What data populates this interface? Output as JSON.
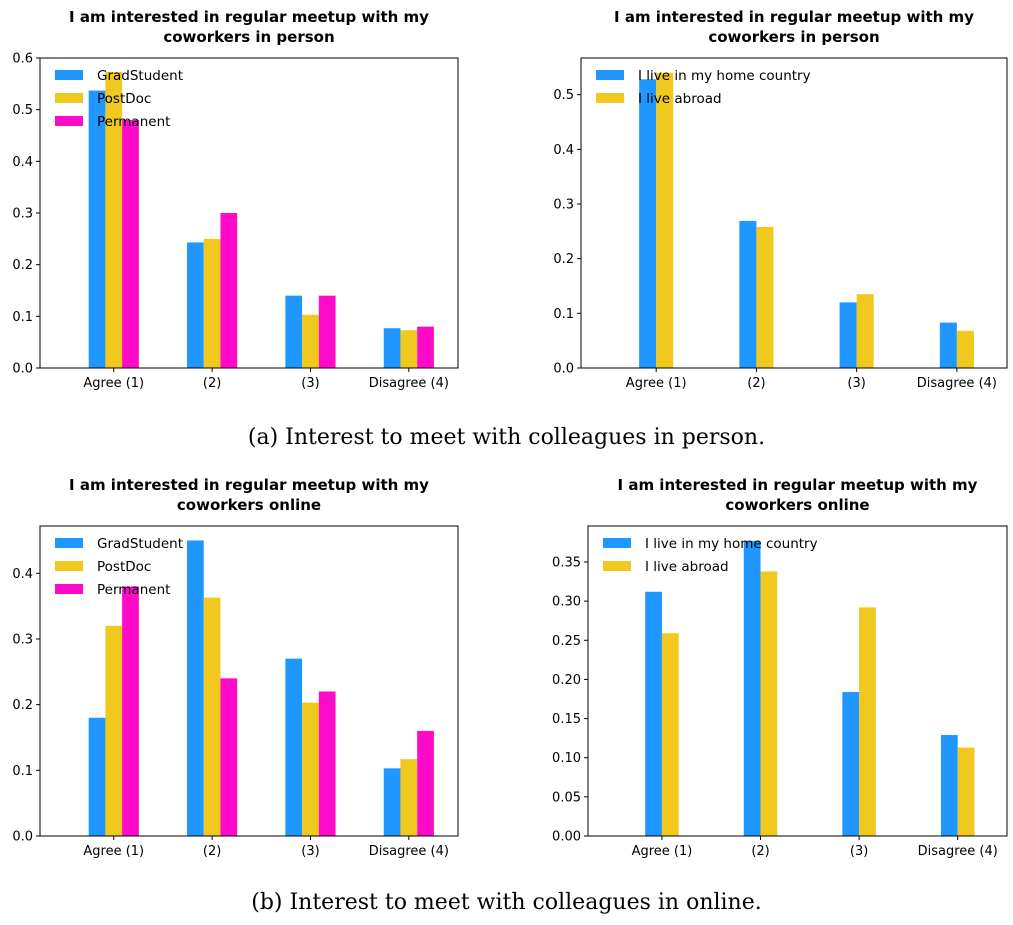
{
  "captions": {
    "a": "(a) Interest to meet with colleagues in person.",
    "b": "(b) Interest to meet with colleagues in online."
  },
  "colors": {
    "GradStudent": "#1f97ff",
    "PostDoc": "#f0c81e",
    "Permanent": "#ff0ac8",
    "I live in my home country": "#1f97ff",
    "I live abroad": "#f0c81e"
  },
  "chart_data": [
    {
      "type": "bar",
      "title": "I am interested in regular meetup with my coworkers in person",
      "categories": [
        "Agree (1)",
        "(2)",
        "(3)",
        "Disagree (4)"
      ],
      "series": [
        {
          "name": "GradStudent",
          "values": [
            0.537,
            0.243,
            0.14,
            0.077
          ]
        },
        {
          "name": "PostDoc",
          "values": [
            0.573,
            0.25,
            0.103,
            0.073
          ]
        },
        {
          "name": "Permanent",
          "values": [
            0.48,
            0.3,
            0.14,
            0.08
          ]
        }
      ],
      "ylim": [
        0,
        0.6
      ],
      "yticks": [
        "0.0",
        "0.1",
        "0.2",
        "0.3",
        "0.4",
        "0.5",
        "0.6"
      ],
      "legend_loc": "top-left",
      "grid": false
    },
    {
      "type": "bar",
      "title": "I am interested in regular meetup with my coworkers in person",
      "categories": [
        "Agree (1)",
        "(2)",
        "(3)",
        "Disagree (4)"
      ],
      "series": [
        {
          "name": "I live in my home country",
          "values": [
            0.528,
            0.269,
            0.12,
            0.083
          ]
        },
        {
          "name": "I live abroad",
          "values": [
            0.54,
            0.258,
            0.135,
            0.068
          ]
        }
      ],
      "ylim": [
        0,
        0.567
      ],
      "yticks": [
        "0.0",
        "0.1",
        "0.2",
        "0.3",
        "0.4",
        "0.5"
      ],
      "legend_loc": "top-left",
      "grid": false
    },
    {
      "type": "bar",
      "title": "I am interested in regular meetup with my coworkers online",
      "categories": [
        "Agree (1)",
        "(2)",
        "(3)",
        "Disagree (4)"
      ],
      "series": [
        {
          "name": "GradStudent",
          "values": [
            0.18,
            0.45,
            0.27,
            0.103
          ]
        },
        {
          "name": "PostDoc",
          "values": [
            0.32,
            0.363,
            0.203,
            0.117
          ]
        },
        {
          "name": "Permanent",
          "values": [
            0.38,
            0.24,
            0.22,
            0.16
          ]
        }
      ],
      "ylim": [
        0,
        0.472
      ],
      "yticks": [
        "0.0",
        "0.1",
        "0.2",
        "0.3",
        "0.4"
      ],
      "legend_loc": "top-left",
      "grid": false
    },
    {
      "type": "bar",
      "title": "I am interested in regular meetup with my coworkers online",
      "categories": [
        "Agree (1)",
        "(2)",
        "(3)",
        "Disagree (4)"
      ],
      "series": [
        {
          "name": "I live in my home country",
          "values": [
            0.312,
            0.377,
            0.184,
            0.129
          ]
        },
        {
          "name": "I live abroad",
          "values": [
            0.259,
            0.338,
            0.292,
            0.113
          ]
        }
      ],
      "ylim": [
        0,
        0.396
      ],
      "yticks": [
        "0.00",
        "0.05",
        "0.10",
        "0.15",
        "0.20",
        "0.25",
        "0.30",
        "0.35"
      ],
      "legend_loc": "top-left",
      "grid": false
    }
  ]
}
